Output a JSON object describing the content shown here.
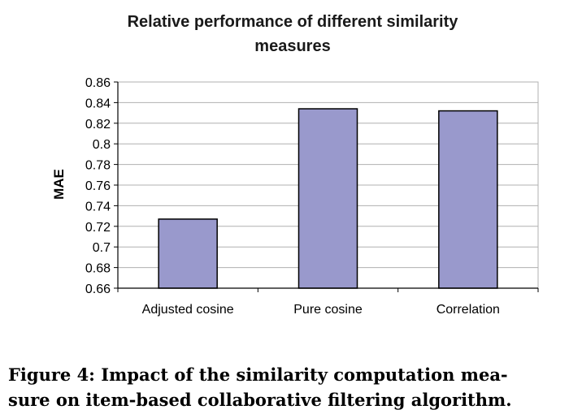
{
  "chart_data": {
    "type": "bar",
    "title_line1": "Relative performance of different similarity",
    "title_line2": "measures",
    "ylabel": "MAE",
    "categories": [
      "Adjusted cosine",
      "Pure cosine",
      "Correlation"
    ],
    "values": [
      0.727,
      0.834,
      0.832
    ],
    "ylim": [
      0.66,
      0.86
    ],
    "yticks": [
      "0.66",
      "0.68",
      "0.7",
      "0.72",
      "0.74",
      "0.76",
      "0.78",
      "0.8",
      "0.82",
      "0.84",
      "0.86"
    ],
    "grid": true,
    "legend": "none",
    "colors": {
      "bar": "#9999cc",
      "bar_stroke": "#000000",
      "grid": "#b0b0b0",
      "axis": "#000000"
    }
  },
  "caption_line1": "Figure 4:  Impact of the similarity computation mea-",
  "caption_line2": "sure on item-based collaborative filtering algorithm."
}
